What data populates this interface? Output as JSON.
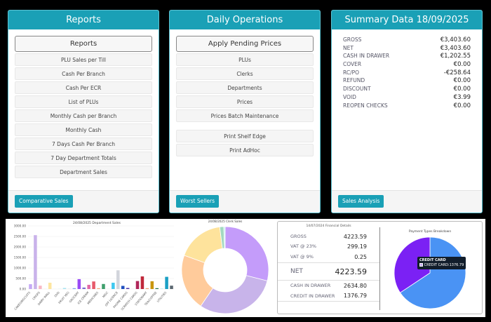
{
  "reports": {
    "title": "Reports",
    "main": "Reports",
    "items": [
      "PLU Sales per Till",
      "Cash Per Branch",
      "Cash Per ECR",
      "List of PLUs",
      "Monthly Cash per Branch",
      "Monthly Cash",
      "7 Days Cash Per Branch",
      "7 Day Department Totals",
      "Department Sales"
    ],
    "footer_button": "Comparative Sales"
  },
  "daily": {
    "title": "Daily Operations",
    "main": "Apply Pending Prices",
    "items": [
      "PLUs",
      "Clerks",
      "Departments",
      "Prices",
      "Prices Batch Maintenance"
    ],
    "items2": [
      "Print Shelf Edge",
      "Print AdHoc"
    ],
    "footer_button": "Worst Sellers"
  },
  "summary": {
    "title": "Summary Data 18/09/2025",
    "rows": [
      {
        "label": "GROSS",
        "value": "€3,403.60"
      },
      {
        "label": "NET",
        "value": "€3,403.60"
      },
      {
        "label": "CASH IN DRAWER",
        "value": "€1,202.55"
      },
      {
        "label": "COVER",
        "value": "€0.00"
      },
      {
        "label": "RC/PO",
        "value": "-€258.64"
      },
      {
        "label": "REFUND",
        "value": "€0.00"
      },
      {
        "label": "DISCOUNT",
        "value": "€0.00"
      },
      {
        "label": "VOID",
        "value": "€3.99"
      },
      {
        "label": "REOPEN CHECKS",
        "value": "€0.00"
      }
    ],
    "footer_button": "Sales Analysis"
  },
  "financial": {
    "title": "14/07/2024 Financial Details",
    "rows": [
      {
        "label": "GROSS",
        "value": "4223.59"
      },
      {
        "label": "VAT @ 23%",
        "value": "299.19"
      },
      {
        "label": "VAT @ 9%",
        "value": "0.25"
      },
      {
        "label": "NET",
        "value": "4223.59"
      },
      {
        "label": "CASH IN DRAWER",
        "value": "2634.80"
      },
      {
        "label": "CREDIT IN DRAWER",
        "value": "1376.79"
      }
    ]
  },
  "chart_data": [
    {
      "type": "bar",
      "title": "24/08/2025 Department Sales",
      "ylim": [
        0,
        3000
      ],
      "yticks": [
        "0.00",
        "500.00",
        "1000.00",
        "1500.00",
        "2000.00",
        "2500.00",
        "3000.00"
      ],
      "grid": true,
      "categories": [
        "CAKES/BISCUITS",
        "",
        "CRISPS",
        "",
        "DAIRY WALL",
        "",
        "DVD",
        "",
        "FRUIT VEG",
        "",
        "GROCERY",
        "",
        "ICE CREAM",
        "",
        "MEDICINES",
        "",
        "MISC",
        "",
        "OFF LICENCE",
        "",
        "PHONE CARDS",
        "",
        "SCRATCH CARDS",
        "",
        "STATIONARY",
        "",
        "TEA/COFFEE",
        "",
        "UTILITIES",
        ""
      ],
      "values": [
        230,
        2560,
        160,
        5,
        300,
        5,
        10,
        50,
        10,
        40,
        470,
        70,
        200,
        360,
        40,
        240,
        5,
        300,
        890,
        150,
        50,
        5,
        380,
        600,
        40,
        370,
        40,
        20,
        580,
        160
      ],
      "colors": [
        "#c4a8f5",
        "#c9b2ea",
        "#f8b8c4",
        "#ffd9a8",
        "#fde6a0",
        "#d7f0e6",
        "#c6eef3",
        "#a7e3f0",
        "#cfd2d8",
        "#7aa6e8",
        "#9a4cf6",
        "#7a6fd0",
        "#e26aa7",
        "#e75a6a",
        "#f1a87a",
        "#3f9f6d",
        "#b0e8d8",
        "#40c8f0",
        "#d2d5dc",
        "#1f4fbf",
        "#4a35a8",
        "#f0c0d0",
        "#b0265a",
        "#c0283a",
        "#e8a070",
        "#c8960e",
        "#1f6e4a",
        "#a8e6e8",
        "#1a9fc4",
        "#5b6770"
      ]
    },
    {
      "type": "pie",
      "title": "24/08/2025 Clerk Sales",
      "donut": true,
      "values": [
        29,
        30.5,
        21,
        17.5,
        1.5,
        0.5
      ],
      "colors": [
        "#c49cfa",
        "#c8b4ea",
        "#ffcb9b",
        "#fee39c",
        "#a2d9c0",
        "#b8ecec"
      ]
    },
    {
      "type": "pie",
      "title": "Payment Types Breakdown",
      "categories": [
        "",
        "CREDIT CARD"
      ],
      "values": [
        2634.8,
        1376.79
      ],
      "colors": [
        "#4a93f4",
        "#7b21f4"
      ],
      "tooltip": {
        "title": "CREDIT CARD",
        "text": "CREDIT CARD:1376.79"
      }
    }
  ]
}
